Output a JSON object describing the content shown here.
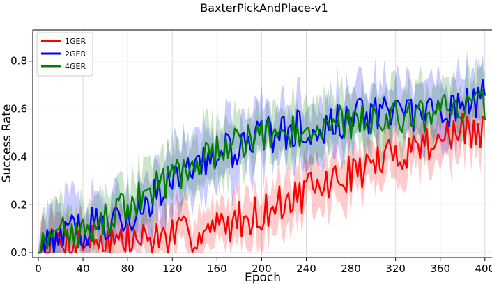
{
  "chart_data": {
    "type": "line",
    "title": "BaxterPickAndPlace-v1",
    "xlabel": "Epoch",
    "ylabel": "Success Rate",
    "xlim": [
      -5,
      407
    ],
    "ylim": [
      -0.02,
      0.93
    ],
    "xticks": [
      0,
      40,
      80,
      120,
      160,
      200,
      240,
      280,
      320,
      360,
      400
    ],
    "yticks": [
      0.0,
      0.2,
      0.4,
      0.6,
      0.8
    ],
    "xtick_labels": [
      "0",
      "40",
      "80",
      "120",
      "160",
      "200",
      "240",
      "280",
      "320",
      "360",
      "400"
    ],
    "ytick_labels": [
      "0.0",
      "0.2",
      "0.4",
      "0.6",
      "0.8"
    ],
    "grid": true,
    "legend_position": "top-left",
    "x": [
      0,
      20,
      40,
      60,
      80,
      100,
      120,
      140,
      160,
      180,
      200,
      220,
      240,
      260,
      280,
      300,
      320,
      340,
      360,
      380,
      400
    ],
    "series": [
      {
        "name": "1GER",
        "color": "#ff0000",
        "values": [
          0.0,
          0.04,
          0.05,
          0.06,
          0.05,
          0.06,
          0.07,
          0.08,
          0.1,
          0.14,
          0.17,
          0.21,
          0.25,
          0.29,
          0.33,
          0.37,
          0.41,
          0.45,
          0.48,
          0.5,
          0.5
        ],
        "band": 0.1
      },
      {
        "name": "2GER",
        "color": "#0000ff",
        "values": [
          0.0,
          0.08,
          0.1,
          0.13,
          0.16,
          0.22,
          0.29,
          0.35,
          0.4,
          0.45,
          0.48,
          0.51,
          0.52,
          0.54,
          0.56,
          0.57,
          0.58,
          0.59,
          0.6,
          0.61,
          0.66
        ],
        "band": 0.12
      },
      {
        "name": "4GER",
        "color": "#008000",
        "values": [
          0.0,
          0.07,
          0.1,
          0.14,
          0.19,
          0.25,
          0.32,
          0.38,
          0.43,
          0.47,
          0.49,
          0.5,
          0.52,
          0.54,
          0.55,
          0.56,
          0.56,
          0.57,
          0.58,
          0.59,
          0.62
        ],
        "band": 0.11
      }
    ]
  }
}
